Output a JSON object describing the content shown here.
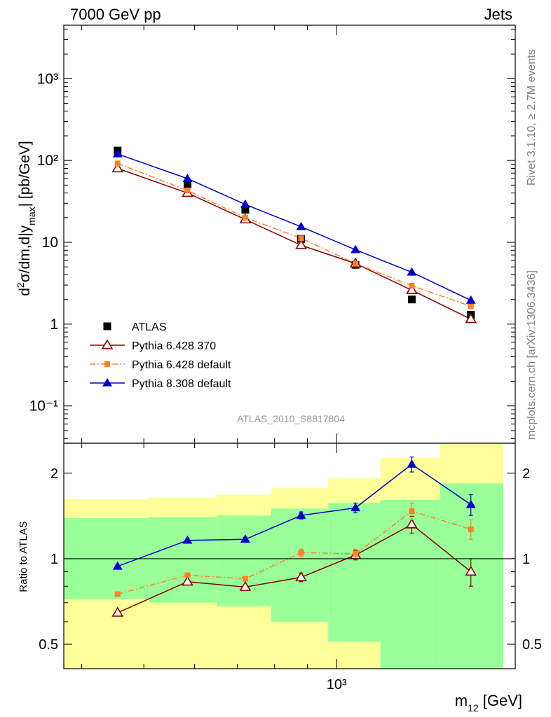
{
  "header": {
    "left": "7000 GeV pp",
    "right": "Jets"
  },
  "side_labels": {
    "rivet": "Rivet 3.1.10, ≥ 2.7M events",
    "mcplots": "mcplots.cern.ch [arXiv:1306.3436]"
  },
  "analysis_id": "ATLAS_2010_S8817804",
  "axes": {
    "ylabel_main": "d²σ/dm,d|y_max| [pb/GeV]",
    "ylabel_ratio": "Ratio to ATLAS",
    "xlabel": "m₁₂ [GeV]"
  },
  "chart_data": [
    {
      "type": "scatter",
      "x_scale": "log",
      "y_scale": "log",
      "xlim": [
        375,
        1900
      ],
      "ylim": [
        0.035,
        4500
      ],
      "y_tick_labels": [
        "10⁻¹",
        "1",
        "10",
        "10²",
        "10³"
      ],
      "y_tick_values": [
        0.1,
        1,
        10,
        100,
        1000
      ],
      "x_tick_labels": [
        "10³"
      ],
      "x_tick_values": [
        1000
      ],
      "legend_placement": "bottom-left",
      "x": [
        455,
        585,
        720,
        880,
        1070,
        1310,
        1620
      ],
      "series": [
        {
          "name": "ATLAS",
          "marker": "filled-square",
          "color": "#000000",
          "values": [
            132,
            51,
            25,
            11,
            5.3,
            2.0,
            1.3
          ]
        },
        {
          "name": "Pythia 6.428 370",
          "marker": "open-triangle",
          "line": "solid",
          "color": "#8b0000",
          "values": [
            80,
            40,
            19,
            9.2,
            5.5,
            2.6,
            1.15
          ]
        },
        {
          "name": "Pythia 6.428 default",
          "marker": "filled-square",
          "line": "dashdot",
          "color": "#ff7f2a",
          "values": [
            92,
            43,
            20,
            11.2,
            5.5,
            2.95,
            1.65
          ]
        },
        {
          "name": "Pythia 8.308 default",
          "marker": "filled-triangle",
          "line": "solid",
          "color": "#0000cc",
          "values": [
            120,
            60,
            29,
            15.5,
            8.1,
            4.3,
            1.95
          ]
        }
      ]
    },
    {
      "type": "scatter",
      "x_scale": "log",
      "y_scale": "log",
      "xlim": [
        375,
        1900
      ],
      "ylim": [
        0.41,
        2.55
      ],
      "y_tick_labels": [
        "0.5",
        "1",
        "2"
      ],
      "y_tick_values": [
        0.5,
        1,
        2
      ],
      "reference_line": 1,
      "bins": [
        {
          "lo": 375,
          "hi": 510,
          "band_inner": [
            0.72,
            1.39
          ],
          "band_outer": [
            0.41,
            1.62
          ]
        },
        {
          "lo": 510,
          "hi": 650,
          "band_inner": [
            0.7,
            1.4
          ],
          "band_outer": [
            0.41,
            1.64
          ]
        },
        {
          "lo": 650,
          "hi": 790,
          "band_inner": [
            0.68,
            1.42
          ],
          "band_outer": [
            0.41,
            1.68
          ]
        },
        {
          "lo": 790,
          "hi": 970,
          "band_inner": [
            0.6,
            1.5
          ],
          "band_outer": [
            0.41,
            1.77
          ]
        },
        {
          "lo": 970,
          "hi": 1170,
          "band_inner": [
            0.51,
            1.57
          ],
          "band_outer": [
            0.41,
            1.92
          ]
        },
        {
          "lo": 1170,
          "hi": 1450,
          "band_inner": [
            0.41,
            1.61
          ],
          "band_outer": [
            0.41,
            2.27
          ]
        },
        {
          "lo": 1450,
          "hi": 1820,
          "band_inner": [
            0.41,
            1.84
          ],
          "band_outer": [
            0.41,
            2.55
          ]
        }
      ],
      "x": [
        455,
        585,
        720,
        880,
        1070,
        1310,
        1620
      ],
      "series": [
        {
          "name": "Pythia 6.428 370",
          "color": "#8b0000",
          "values": [
            0.645,
            0.83,
            0.795,
            0.86,
            1.03,
            1.32,
            0.9
          ],
          "errors": [
            0.01,
            0.012,
            0.015,
            0.03,
            0.04,
            0.09,
            0.1
          ]
        },
        {
          "name": "Pythia 6.428 default",
          "color": "#ff7f2a",
          "values": [
            0.75,
            0.875,
            0.85,
            1.05,
            1.04,
            1.47,
            1.27
          ],
          "errors": [
            0.01,
            0.012,
            0.015,
            0.03,
            0.04,
            0.1,
            0.1
          ]
        },
        {
          "name": "Pythia 8.308 default",
          "color": "#0000cc",
          "values": [
            0.94,
            1.16,
            1.17,
            1.42,
            1.51,
            2.15,
            1.55
          ],
          "errors": [
            0.01,
            0.015,
            0.02,
            0.04,
            0.06,
            0.13,
            0.13
          ]
        }
      ]
    }
  ]
}
